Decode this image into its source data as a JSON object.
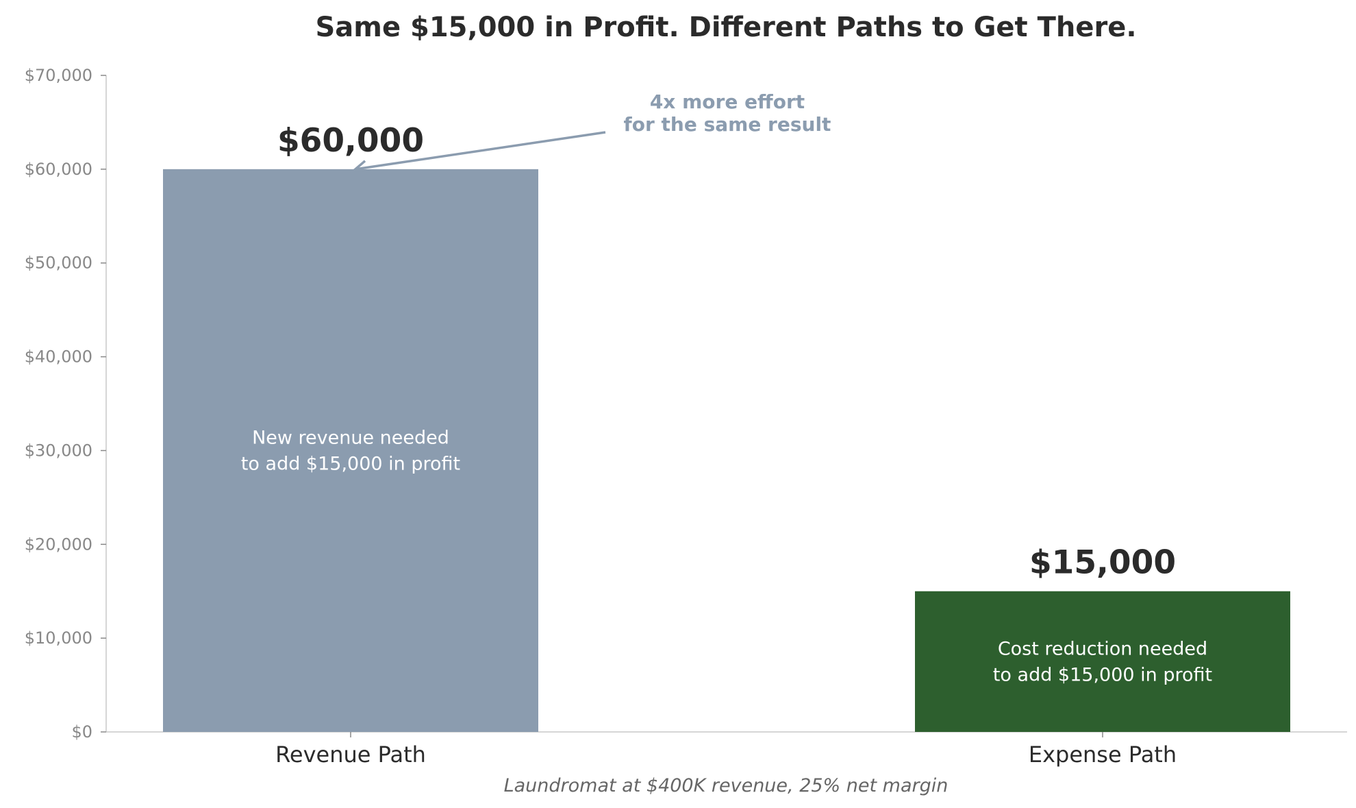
{
  "chart_data": {
    "type": "bar",
    "title": "Same $15,000 in Profit. Different Paths to Get There.",
    "xlabel": "Laundromat at $400K revenue, 25% net margin",
    "ylabel": "",
    "ylim": [
      0,
      70000
    ],
    "yticks": [
      0,
      10000,
      20000,
      30000,
      40000,
      50000,
      60000,
      70000
    ],
    "ytick_labels": [
      "$0",
      "$10,000",
      "$20,000",
      "$30,000",
      "$40,000",
      "$50,000",
      "$60,000",
      "$70,000"
    ],
    "categories": [
      "Revenue Path",
      "Expense Path"
    ],
    "values": [
      60000,
      15000
    ],
    "value_labels": [
      "$60,000",
      "$15,000"
    ],
    "bar_colors": [
      "#8b9caf",
      "#2d5f2e"
    ],
    "inner_labels": [
      [
        "New revenue needed",
        "to add $15,000 in profit"
      ],
      [
        "Cost reduction needed",
        "to add $15,000 in profit"
      ]
    ],
    "annotation": {
      "lines": [
        "4x more effort",
        "for the same result"
      ],
      "points_to_category": "Revenue Path",
      "points_to_value": 60000,
      "color": "#8b9caf"
    },
    "grid": false
  }
}
